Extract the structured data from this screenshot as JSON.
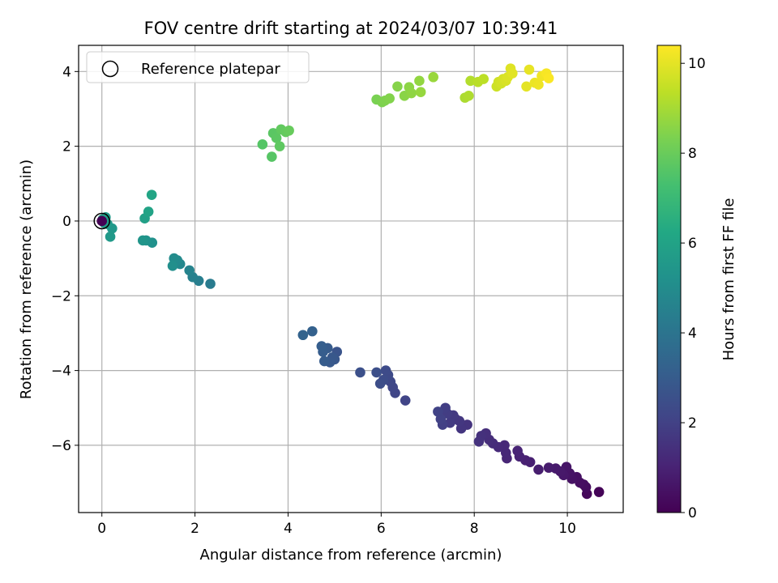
{
  "chart_data": {
    "type": "scatter",
    "title": "FOV centre drift starting at 2024/03/07 10:39:41",
    "xlabel": "Angular distance from reference (arcmin)",
    "ylabel": "Rotation from reference (arcmin)",
    "xlim": [
      -0.5,
      11.2
    ],
    "ylim": [
      -7.8,
      4.7
    ],
    "xticks": [
      0,
      2,
      4,
      6,
      8,
      10
    ],
    "xtick_labels": [
      "0",
      "2",
      "4",
      "6",
      "8",
      "10"
    ],
    "yticks": [
      -6,
      -4,
      -2,
      0,
      2,
      4
    ],
    "ytick_labels": [
      "−6",
      "−4",
      "−2",
      "0",
      "2",
      "4"
    ],
    "grid": true,
    "legend": {
      "placement": "top-left",
      "entries": [
        "Reference platepar"
      ]
    },
    "reference_point": {
      "x": 0,
      "y": 0,
      "marker": "open-circle"
    },
    "colorbar": {
      "label": "Hours from first FF file",
      "colormap": "viridis",
      "range": [
        0,
        10.4
      ],
      "ticks": [
        0,
        2,
        4,
        6,
        8,
        10
      ],
      "tick_labels": [
        "0",
        "2",
        "4",
        "6",
        "8",
        "10"
      ]
    },
    "points": [
      {
        "x": 10.68,
        "y": -7.25,
        "c": 0.1
      },
      {
        "x": 10.42,
        "y": -7.3,
        "c": 0.2
      },
      {
        "x": 10.4,
        "y": -7.12,
        "c": 0.3
      },
      {
        "x": 10.35,
        "y": -7.05,
        "c": 0.35
      },
      {
        "x": 10.27,
        "y": -7.0,
        "c": 0.4
      },
      {
        "x": 10.2,
        "y": -6.85,
        "c": 0.45
      },
      {
        "x": 10.1,
        "y": -6.9,
        "c": 0.5
      },
      {
        "x": 10.05,
        "y": -6.75,
        "c": 0.55
      },
      {
        "x": 9.98,
        "y": -6.58,
        "c": 0.6
      },
      {
        "x": 9.92,
        "y": -6.8,
        "c": 0.65
      },
      {
        "x": 9.85,
        "y": -6.7,
        "c": 0.7
      },
      {
        "x": 9.75,
        "y": -6.62,
        "c": 0.75
      },
      {
        "x": 9.6,
        "y": -6.6,
        "c": 0.8
      },
      {
        "x": 9.38,
        "y": -6.65,
        "c": 0.85
      },
      {
        "x": 9.2,
        "y": -6.45,
        "c": 0.9
      },
      {
        "x": 9.1,
        "y": -6.4,
        "c": 0.95
      },
      {
        "x": 8.97,
        "y": -6.3,
        "c": 1.0
      },
      {
        "x": 8.93,
        "y": -6.15,
        "c": 1.05
      },
      {
        "x": 8.7,
        "y": -6.35,
        "c": 1.1
      },
      {
        "x": 8.68,
        "y": -6.2,
        "c": 1.15
      },
      {
        "x": 8.65,
        "y": -6.0,
        "c": 1.2
      },
      {
        "x": 8.52,
        "y": -6.05,
        "c": 1.25
      },
      {
        "x": 8.4,
        "y": -5.95,
        "c": 1.3
      },
      {
        "x": 8.32,
        "y": -5.85,
        "c": 1.35
      },
      {
        "x": 8.25,
        "y": -5.68,
        "c": 1.4
      },
      {
        "x": 8.15,
        "y": -5.75,
        "c": 1.45
      },
      {
        "x": 8.1,
        "y": -5.9,
        "c": 1.5
      },
      {
        "x": 7.85,
        "y": -5.45,
        "c": 1.55
      },
      {
        "x": 7.72,
        "y": -5.55,
        "c": 1.6
      },
      {
        "x": 7.68,
        "y": -5.35,
        "c": 1.65
      },
      {
        "x": 7.6,
        "y": -5.3,
        "c": 1.7
      },
      {
        "x": 7.55,
        "y": -5.2,
        "c": 1.75
      },
      {
        "x": 7.48,
        "y": -5.4,
        "c": 1.8
      },
      {
        "x": 7.42,
        "y": -5.15,
        "c": 1.85
      },
      {
        "x": 7.38,
        "y": -5.0,
        "c": 1.9
      },
      {
        "x": 7.32,
        "y": -5.45,
        "c": 1.95
      },
      {
        "x": 7.28,
        "y": -5.3,
        "c": 2.0
      },
      {
        "x": 7.22,
        "y": -5.1,
        "c": 2.05
      },
      {
        "x": 6.52,
        "y": -4.8,
        "c": 2.1
      },
      {
        "x": 6.3,
        "y": -4.6,
        "c": 2.15
      },
      {
        "x": 6.25,
        "y": -4.45,
        "c": 2.2
      },
      {
        "x": 6.2,
        "y": -4.3,
        "c": 2.25
      },
      {
        "x": 6.15,
        "y": -4.12,
        "c": 2.3
      },
      {
        "x": 6.1,
        "y": -4.0,
        "c": 2.35
      },
      {
        "x": 6.05,
        "y": -4.25,
        "c": 2.4
      },
      {
        "x": 5.98,
        "y": -4.35,
        "c": 2.45
      },
      {
        "x": 5.9,
        "y": -4.05,
        "c": 2.5
      },
      {
        "x": 5.55,
        "y": -4.05,
        "c": 2.55
      },
      {
        "x": 5.05,
        "y": -3.5,
        "c": 2.7
      },
      {
        "x": 5.0,
        "y": -3.7,
        "c": 2.8
      },
      {
        "x": 4.95,
        "y": -3.65,
        "c": 2.85
      },
      {
        "x": 4.9,
        "y": -3.78,
        "c": 2.9
      },
      {
        "x": 4.85,
        "y": -3.4,
        "c": 2.95
      },
      {
        "x": 4.78,
        "y": -3.75,
        "c": 3.0
      },
      {
        "x": 4.75,
        "y": -3.5,
        "c": 3.05
      },
      {
        "x": 4.72,
        "y": -3.35,
        "c": 3.1
      },
      {
        "x": 4.52,
        "y": -2.95,
        "c": 3.2
      },
      {
        "x": 4.32,
        "y": -3.05,
        "c": 3.3
      },
      {
        "x": 2.33,
        "y": -1.68,
        "c": 4.3
      },
      {
        "x": 2.08,
        "y": -1.6,
        "c": 4.4
      },
      {
        "x": 1.95,
        "y": -1.5,
        "c": 4.5
      },
      {
        "x": 1.88,
        "y": -1.32,
        "c": 4.6
      },
      {
        "x": 1.68,
        "y": -1.15,
        "c": 4.8
      },
      {
        "x": 1.62,
        "y": -1.05,
        "c": 4.9
      },
      {
        "x": 1.55,
        "y": -1.0,
        "c": 5.0
      },
      {
        "x": 1.52,
        "y": -1.2,
        "c": 5.1
      },
      {
        "x": 1.08,
        "y": -0.58,
        "c": 5.2
      },
      {
        "x": 0.95,
        "y": -0.52,
        "c": 5.3
      },
      {
        "x": 0.88,
        "y": -0.52,
        "c": 5.4
      },
      {
        "x": 0.22,
        "y": -0.2,
        "c": 5.5
      },
      {
        "x": 0.18,
        "y": -0.42,
        "c": 5.55
      },
      {
        "x": 0.12,
        "y": -0.08,
        "c": 5.6
      },
      {
        "x": 0.08,
        "y": 0.1,
        "c": 5.65
      },
      {
        "x": 0.05,
        "y": -0.05,
        "c": 5.7
      },
      {
        "x": 0.02,
        "y": 0.05,
        "c": 5.8
      },
      {
        "x": 0.0,
        "y": 0.0,
        "c": 0.0
      },
      {
        "x": 0.92,
        "y": 0.07,
        "c": 5.9
      },
      {
        "x": 1.0,
        "y": 0.25,
        "c": 6.0
      },
      {
        "x": 1.07,
        "y": 0.7,
        "c": 6.1
      },
      {
        "x": 3.45,
        "y": 2.05,
        "c": 7.6
      },
      {
        "x": 3.65,
        "y": 1.72,
        "c": 7.65
      },
      {
        "x": 3.68,
        "y": 2.35,
        "c": 7.7
      },
      {
        "x": 3.75,
        "y": 2.22,
        "c": 7.75
      },
      {
        "x": 3.82,
        "y": 2.0,
        "c": 7.8
      },
      {
        "x": 3.85,
        "y": 2.45,
        "c": 7.85
      },
      {
        "x": 3.95,
        "y": 2.38,
        "c": 7.9
      },
      {
        "x": 4.02,
        "y": 2.42,
        "c": 7.95
      },
      {
        "x": 5.9,
        "y": 3.25,
        "c": 8.3
      },
      {
        "x": 6.02,
        "y": 3.18,
        "c": 8.35
      },
      {
        "x": 6.08,
        "y": 3.22,
        "c": 8.4
      },
      {
        "x": 6.18,
        "y": 3.28,
        "c": 8.45
      },
      {
        "x": 6.35,
        "y": 3.6,
        "c": 8.5
      },
      {
        "x": 6.5,
        "y": 3.35,
        "c": 8.55
      },
      {
        "x": 6.6,
        "y": 3.58,
        "c": 8.6
      },
      {
        "x": 6.65,
        "y": 3.42,
        "c": 8.65
      },
      {
        "x": 6.82,
        "y": 3.75,
        "c": 8.7
      },
      {
        "x": 6.85,
        "y": 3.45,
        "c": 8.75
      },
      {
        "x": 7.12,
        "y": 3.85,
        "c": 8.8
      },
      {
        "x": 7.8,
        "y": 3.3,
        "c": 9.1
      },
      {
        "x": 7.88,
        "y": 3.35,
        "c": 9.15
      },
      {
        "x": 7.92,
        "y": 3.75,
        "c": 9.2
      },
      {
        "x": 8.08,
        "y": 3.72,
        "c": 9.3
      },
      {
        "x": 8.2,
        "y": 3.8,
        "c": 9.35
      },
      {
        "x": 8.48,
        "y": 3.6,
        "c": 9.6
      },
      {
        "x": 8.52,
        "y": 3.72,
        "c": 9.65
      },
      {
        "x": 8.58,
        "y": 3.68,
        "c": 9.7
      },
      {
        "x": 8.62,
        "y": 3.8,
        "c": 9.75
      },
      {
        "x": 8.68,
        "y": 3.75,
        "c": 9.8
      },
      {
        "x": 8.72,
        "y": 3.85,
        "c": 9.85
      },
      {
        "x": 8.78,
        "y": 4.08,
        "c": 9.9
      },
      {
        "x": 8.82,
        "y": 3.95,
        "c": 9.95
      },
      {
        "x": 9.12,
        "y": 3.6,
        "c": 10.0
      },
      {
        "x": 9.18,
        "y": 4.05,
        "c": 10.05
      },
      {
        "x": 9.3,
        "y": 3.7,
        "c": 10.1
      },
      {
        "x": 9.38,
        "y": 3.65,
        "c": 10.15
      },
      {
        "x": 9.45,
        "y": 3.88,
        "c": 10.2
      },
      {
        "x": 9.55,
        "y": 3.95,
        "c": 10.3
      },
      {
        "x": 9.6,
        "y": 3.82,
        "c": 10.35
      }
    ]
  }
}
